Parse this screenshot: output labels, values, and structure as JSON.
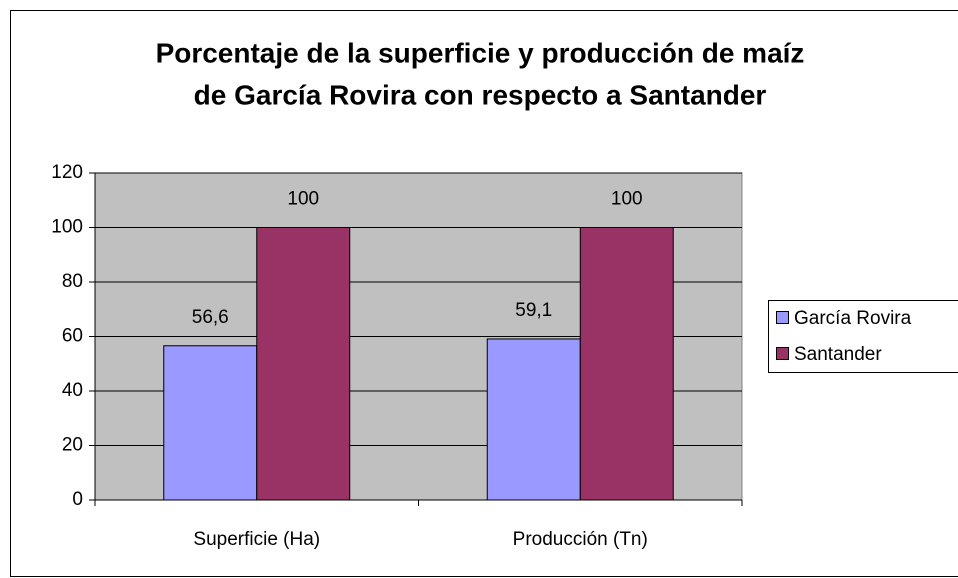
{
  "chart_data": {
    "type": "bar",
    "title": [
      "Porcentaje de la superficie y producción de maíz",
      "de García Rovira con respecto a Santander"
    ],
    "categories": [
      "Superficie (Ha)",
      "Producción (Tn)"
    ],
    "series": [
      {
        "name": "García Rovira",
        "color": "#9999ff",
        "values": [
          56.6,
          59.1
        ],
        "value_labels": [
          "56,6",
          "59,1"
        ]
      },
      {
        "name": "Santander",
        "color": "#993366",
        "values": [
          100,
          100
        ],
        "value_labels": [
          "100",
          "100"
        ]
      }
    ],
    "ylim": [
      0,
      120
    ],
    "yticks": [
      0,
      20,
      40,
      60,
      80,
      100,
      120
    ],
    "grid": true,
    "legend": "right"
  }
}
